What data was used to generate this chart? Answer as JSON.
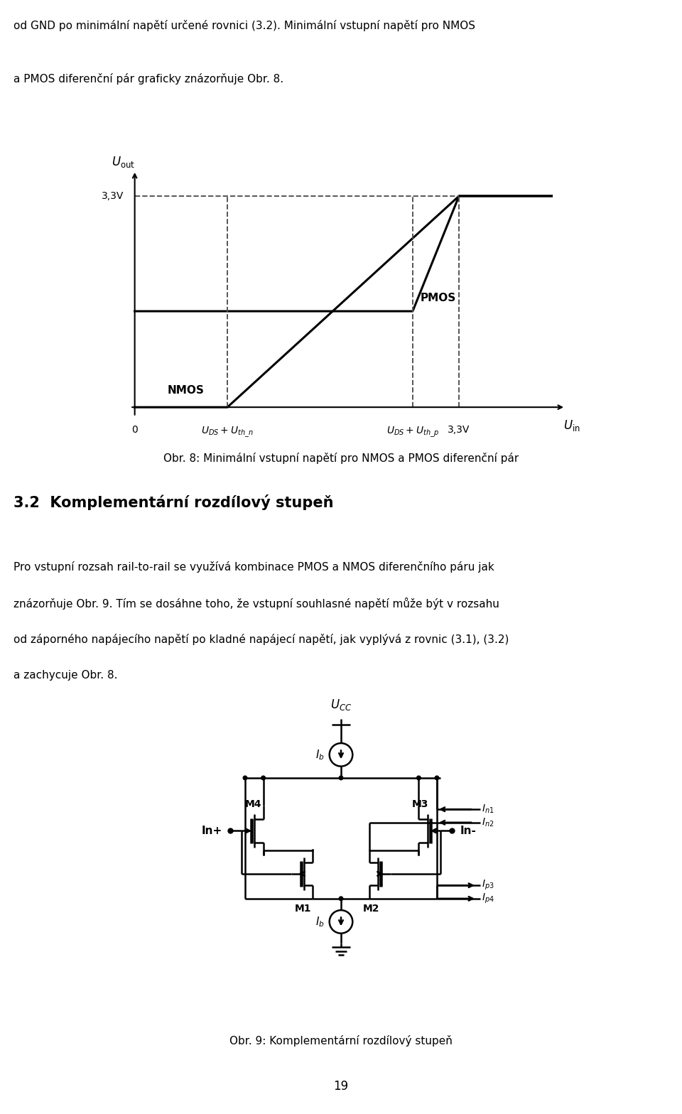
{
  "page_width": 9.6,
  "page_height": 15.68,
  "bg_color": "#ffffff",
  "top_text_lines": [
    "od GND po minimální napětí určené rovnici (3.2). Minimální vstupní napětí pro NMOS",
    "a PMOS diferenční pár graficky znázorňuje Obr. 8."
  ],
  "fig8_caption": "Obr. 8: Minimální vstupní napětí pro NMOS a PMOS diferenční pár",
  "section_title": "3.2  Komplementární rozdílový stupeň",
  "body_line1": "Pro vstupní rozsah rail-to-rail se využívá kombinace PMOS a NMOS diferenčního páru jak",
  "body_line2": "znázorňuje Obr. 9. Tím se dosáhne toho, že vstupní souhlasné napětí může být v rozsahu",
  "body_line3": "od záporného napájecího napětí po kladné napájecí napětí, jak vyplývá z rovnic (3.1), (3.2)",
  "body_line4": "a zachycuje Obr. 8.",
  "fig9_caption": "Obr. 9: Komplementární rozdílový stupeň",
  "page_number": "19",
  "text_color": "#000000",
  "line_color": "#000000"
}
